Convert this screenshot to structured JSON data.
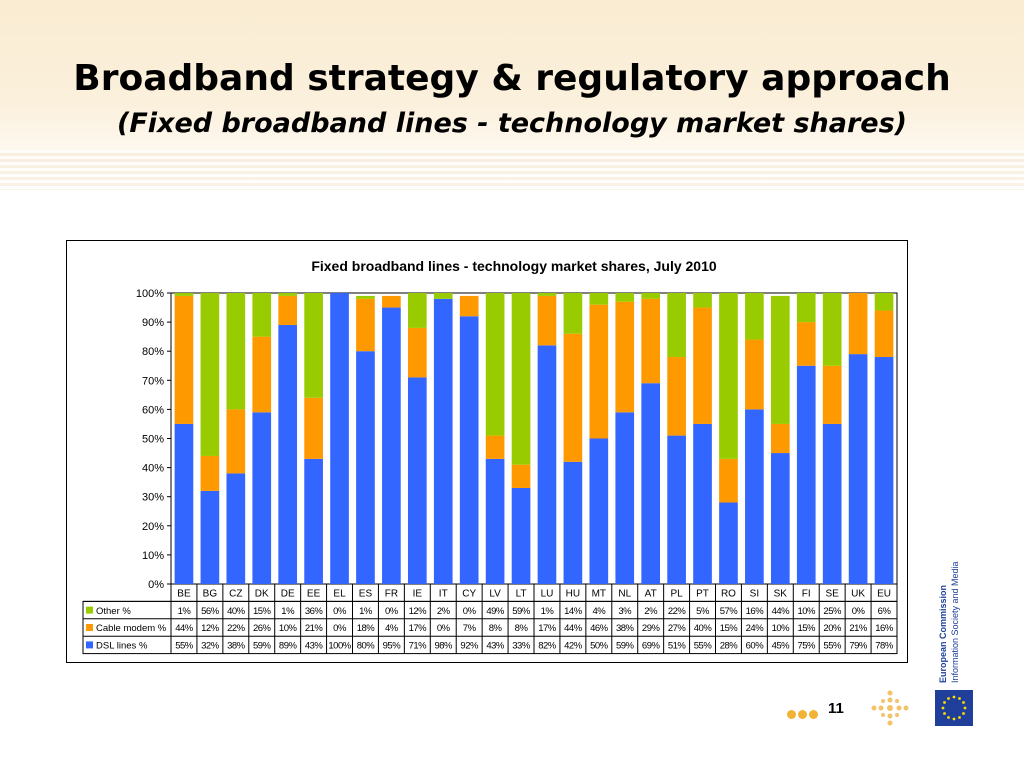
{
  "slide": {
    "title": "Broadband strategy & regulatory approach",
    "subtitle": "(Fixed broadband lines - technology market shares)",
    "page_number": "11",
    "logo_text_line1": "European Commission",
    "logo_text_line2": "Information Society and Media"
  },
  "colors": {
    "dsl": "#3366ff",
    "cable": "#ff9900",
    "other": "#99cc00",
    "header_bg": "#f9ecd2",
    "accent_dots": "#f2b233"
  },
  "chart_data": {
    "type": "bar",
    "stacked": true,
    "title": "Fixed broadband lines - technology market shares, July 2010",
    "categories": [
      "BE",
      "BG",
      "CZ",
      "DK",
      "DE",
      "EE",
      "EL",
      "ES",
      "FR",
      "IE",
      "IT",
      "CY",
      "LV",
      "LT",
      "LU",
      "HU",
      "MT",
      "NL",
      "AT",
      "PL",
      "PT",
      "RO",
      "SI",
      "SK",
      "FI",
      "SE",
      "UK",
      "EU"
    ],
    "y_ticks": [
      "0%",
      "10%",
      "20%",
      "30%",
      "40%",
      "50%",
      "60%",
      "70%",
      "80%",
      "90%",
      "100%"
    ],
    "ylim": [
      0,
      100
    ],
    "series": [
      {
        "name": "DSL lines %",
        "color": "#3366ff",
        "values": [
          55,
          32,
          38,
          59,
          89,
          43,
          100,
          80,
          95,
          71,
          98,
          92,
          43,
          33,
          82,
          42,
          50,
          59,
          69,
          51,
          55,
          28,
          60,
          45,
          75,
          55,
          79,
          78
        ],
        "labels": [
          "55%",
          "32%",
          "38%",
          "59%",
          "89%",
          "43%",
          "100%",
          "80%",
          "95%",
          "71%",
          "98%",
          "92%",
          "43%",
          "33%",
          "82%",
          "42%",
          "50%",
          "59%",
          "69%",
          "51%",
          "55%",
          "28%",
          "60%",
          "45%",
          "75%",
          "55%",
          "79%",
          "78%"
        ]
      },
      {
        "name": "Cable modem %",
        "color": "#ff9900",
        "values": [
          44,
          12,
          22,
          26,
          10,
          21,
          0,
          18,
          4,
          17,
          0,
          7,
          8,
          8,
          17,
          44,
          46,
          38,
          29,
          27,
          40,
          15,
          24,
          10,
          15,
          20,
          21,
          16
        ],
        "labels": [
          "44%",
          "12%",
          "22%",
          "26%",
          "10%",
          "21%",
          "0%",
          "18%",
          "4%",
          "17%",
          "0%",
          "7%",
          "8%",
          "8%",
          "17%",
          "44%",
          "46%",
          "38%",
          "29%",
          "27%",
          "40%",
          "15%",
          "24%",
          "10%",
          "15%",
          "20%",
          "21%",
          "16%"
        ]
      },
      {
        "name": "Other %",
        "color": "#99cc00",
        "values": [
          1,
          56,
          40,
          15,
          1,
          36,
          0,
          1,
          0,
          12,
          2,
          0,
          49,
          59,
          1,
          14,
          4,
          3,
          2,
          22,
          5,
          57,
          16,
          44,
          10,
          25,
          0,
          6
        ],
        "labels": [
          "1%",
          "56%",
          "40%",
          "15%",
          "1%",
          "36%",
          "0%",
          "1%",
          "0%",
          "12%",
          "2%",
          "0%",
          "49%",
          "59%",
          "1%",
          "14%",
          "4%",
          "3%",
          "2%",
          "22%",
          "5%",
          "57%",
          "16%",
          "44%",
          "10%",
          "25%",
          "0%",
          "6%"
        ]
      }
    ],
    "table_row_order": [
      "Other %",
      "Cable modem %",
      "DSL lines %"
    ],
    "grid": false
  }
}
